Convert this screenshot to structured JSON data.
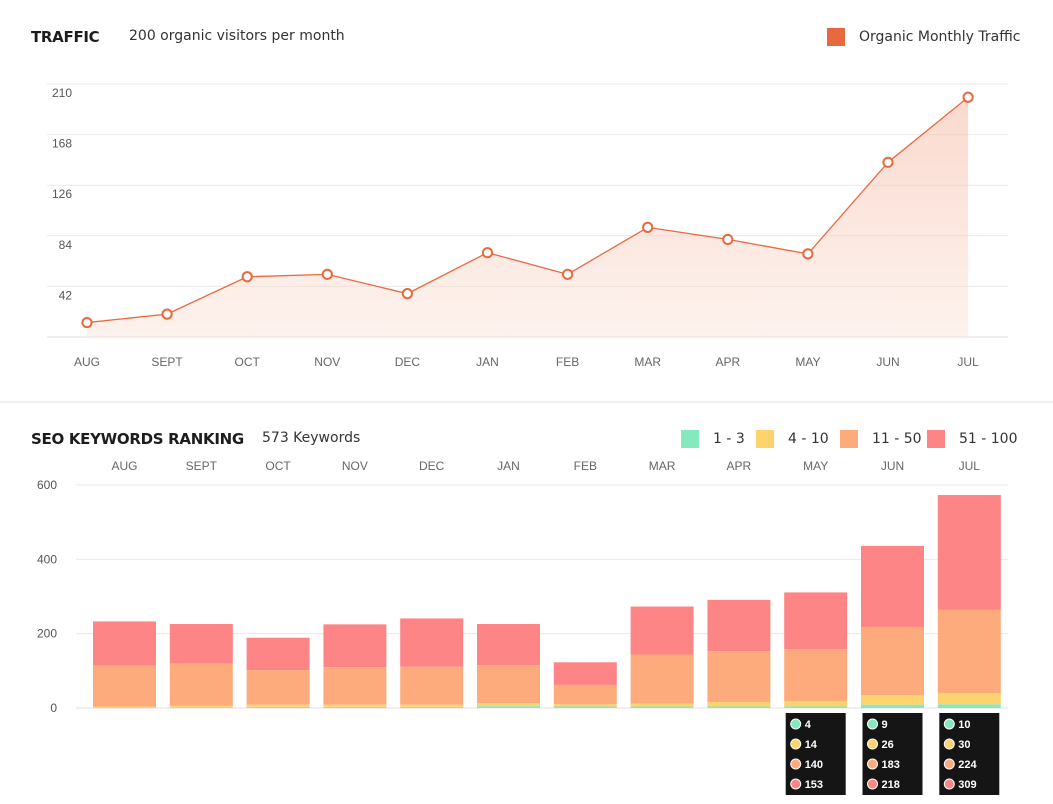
{
  "traffic": {
    "title": "TRAFFIC",
    "subtitle": "200 organic visitors per month",
    "legend_label": "Organic Monthly Traffic",
    "legend_color": "#e8693f"
  },
  "keywords": {
    "title": "SEO KEYWORDS RANKING",
    "subtitle": "573 Keywords",
    "legend": [
      {
        "label": "1 - 3",
        "color": "#86e8bf"
      },
      {
        "label": "4 - 10",
        "color": "#fdd36e"
      },
      {
        "label": "11 - 50",
        "color": "#fdab7d"
      },
      {
        "label": "51 - 100",
        "color": "#fe8585"
      }
    ]
  },
  "chart_data": [
    {
      "type": "area",
      "categories": [
        "AUG",
        "SEPT",
        "OCT",
        "NOV",
        "DEC",
        "JAN",
        "FEB",
        "MAR",
        "APR",
        "MAY",
        "JUN",
        "JUL"
      ],
      "series": [
        {
          "name": "Organic Monthly Traffic",
          "values": [
            12,
            19,
            50,
            52,
            36,
            70,
            52,
            91,
            81,
            69,
            145,
            199
          ]
        }
      ],
      "yticks": [
        42,
        84,
        126,
        168,
        210
      ],
      "ylim": [
        0,
        210
      ],
      "grid": true,
      "legend_position": "top-right"
    },
    {
      "type": "bar",
      "stacked": true,
      "categories": [
        "AUG",
        "SEPT",
        "OCT",
        "NOV",
        "DEC",
        "JAN",
        "FEB",
        "MAR",
        "APR",
        "MAY",
        "JUN",
        "JUL"
      ],
      "series": [
        {
          "name": "1 - 3",
          "values": [
            1,
            2,
            3,
            3,
            3,
            5,
            4,
            4,
            4,
            4,
            9,
            10
          ]
        },
        {
          "name": "4 - 10",
          "values": [
            3,
            4,
            6,
            6,
            6,
            8,
            6,
            8,
            12,
            14,
            26,
            30
          ]
        },
        {
          "name": "11 - 50",
          "values": [
            110,
            114,
            93,
            101,
            102,
            102,
            52,
            132,
            137,
            140,
            183,
            224
          ]
        },
        {
          "name": "51 - 100",
          "values": [
            119,
            106,
            87,
            115,
            130,
            111,
            61,
            129,
            138,
            153,
            218,
            309
          ]
        }
      ],
      "yticks": [
        0,
        200,
        400,
        600
      ],
      "ylim": [
        0,
        600
      ],
      "grid": true,
      "legend_position": "top-right",
      "tooltips": [
        {
          "category": "MAY",
          "values": [
            "4",
            "14",
            "140",
            "153"
          ]
        },
        {
          "category": "JUN",
          "values": [
            "9",
            "26",
            "183",
            "218"
          ]
        },
        {
          "category": "JUL",
          "values": [
            "10",
            "30",
            "224",
            "309"
          ]
        }
      ]
    }
  ]
}
